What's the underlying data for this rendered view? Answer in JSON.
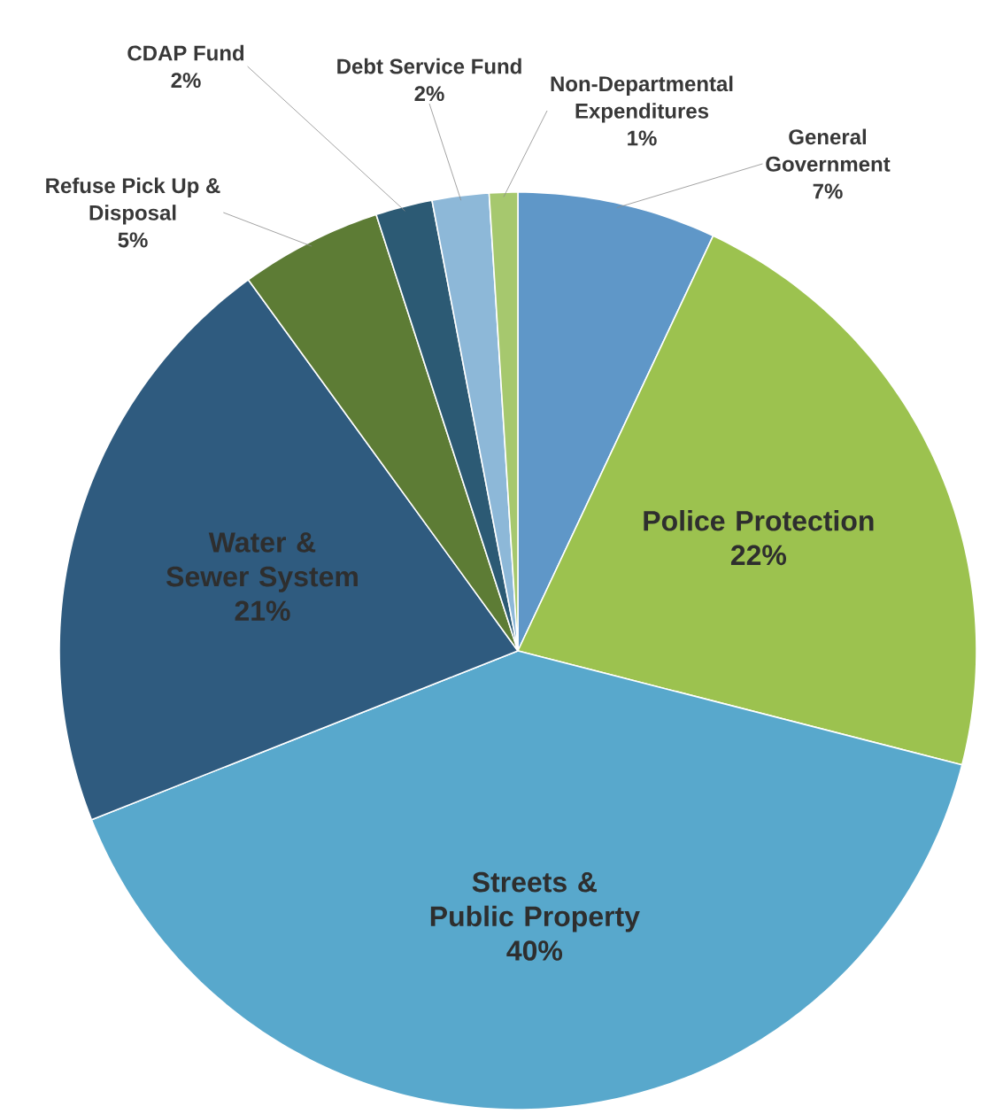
{
  "chart_data": {
    "type": "pie",
    "categories": [
      "General Government",
      "Police Protection",
      "Streets & Public Property",
      "Water & Sewer System",
      "Refuse Pick Up & Disposal",
      "CDAP Fund",
      "Debt Service Fund",
      "Non-Departmental Expenditures"
    ],
    "values": [
      7,
      22,
      40,
      21,
      5,
      2,
      2,
      1
    ],
    "value_labels": [
      "7%",
      "22%",
      "40%",
      "21%",
      "5%",
      "2%",
      "2%",
      "1%"
    ],
    "colors": [
      "#5f97c8",
      "#9cc24f",
      "#58a8cc",
      "#2f5b7f",
      "#5d7c35",
      "#2c5a74",
      "#8db8d8",
      "#a6c86e"
    ]
  }
}
